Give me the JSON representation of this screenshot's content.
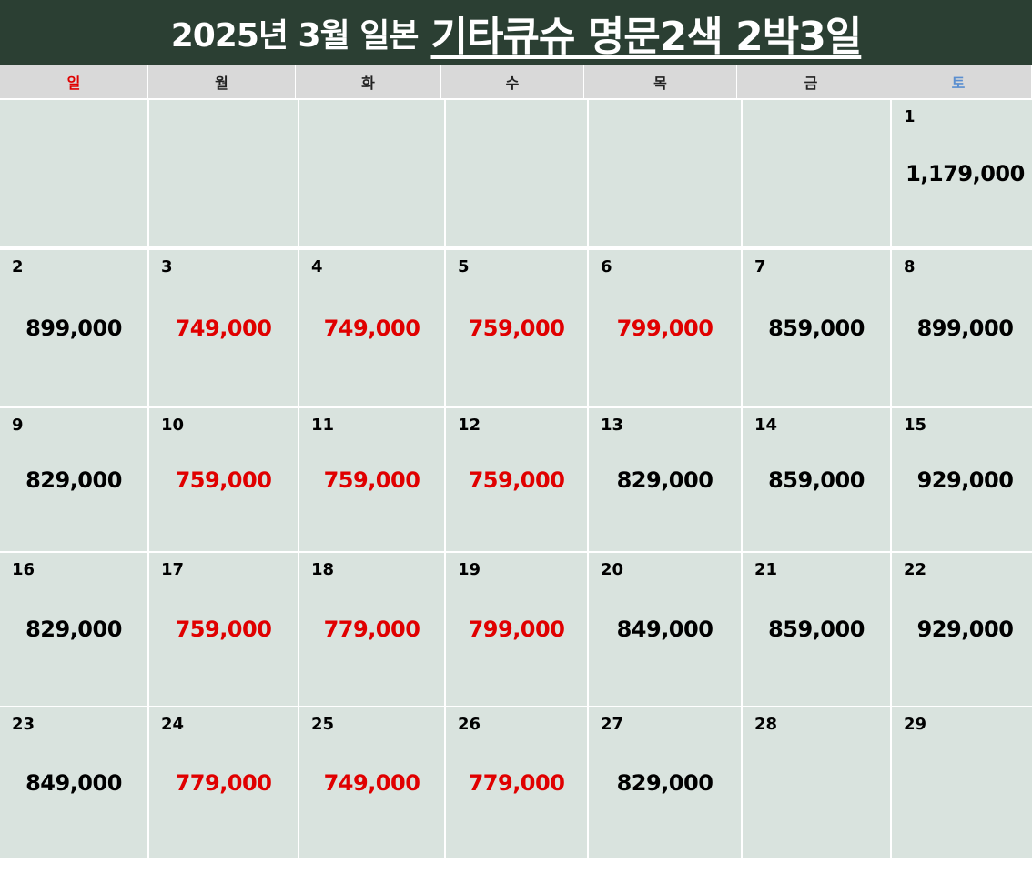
{
  "header": {
    "title_prefix": "2025년 3월 일본",
    "title_main": "기타큐슈 명문2색 2박3일"
  },
  "weekdays": [
    "일",
    "월",
    "화",
    "수",
    "목",
    "금",
    "토"
  ],
  "colors": {
    "header_bg": "#2b3f33",
    "cell_bg": "#d9e3de",
    "sale": "#e00000",
    "normal": "#000000",
    "sunday": "#e00000",
    "saturday": "#5b8fd0"
  },
  "weeks": [
    [
      null,
      null,
      null,
      null,
      null,
      null,
      {
        "day": "1",
        "price": "1,179,000",
        "sale": false
      }
    ],
    [
      {
        "day": "2",
        "price": "899,000",
        "sale": false
      },
      {
        "day": "3",
        "price": "749,000",
        "sale": true
      },
      {
        "day": "4",
        "price": "749,000",
        "sale": true
      },
      {
        "day": "5",
        "price": "759,000",
        "sale": true
      },
      {
        "day": "6",
        "price": "799,000",
        "sale": true
      },
      {
        "day": "7",
        "price": "859,000",
        "sale": false
      },
      {
        "day": "8",
        "price": "899,000",
        "sale": false
      }
    ],
    [
      {
        "day": "9",
        "price": "829,000",
        "sale": false
      },
      {
        "day": "10",
        "price": "759,000",
        "sale": true
      },
      {
        "day": "11",
        "price": "759,000",
        "sale": true
      },
      {
        "day": "12",
        "price": "759,000",
        "sale": true
      },
      {
        "day": "13",
        "price": "829,000",
        "sale": false
      },
      {
        "day": "14",
        "price": "859,000",
        "sale": false
      },
      {
        "day": "15",
        "price": "929,000",
        "sale": false
      }
    ],
    [
      {
        "day": "16",
        "price": "829,000",
        "sale": false
      },
      {
        "day": "17",
        "price": "759,000",
        "sale": true
      },
      {
        "day": "18",
        "price": "779,000",
        "sale": true
      },
      {
        "day": "19",
        "price": "799,000",
        "sale": true
      },
      {
        "day": "20",
        "price": "849,000",
        "sale": false
      },
      {
        "day": "21",
        "price": "859,000",
        "sale": false
      },
      {
        "day": "22",
        "price": "929,000",
        "sale": false
      }
    ],
    [
      {
        "day": "23",
        "price": "849,000",
        "sale": false
      },
      {
        "day": "24",
        "price": "779,000",
        "sale": true
      },
      {
        "day": "25",
        "price": "749,000",
        "sale": true
      },
      {
        "day": "26",
        "price": "779,000",
        "sale": true
      },
      {
        "day": "27",
        "price": "829,000",
        "sale": false
      },
      {
        "day": "28",
        "price": null,
        "sale": false
      },
      {
        "day": "29",
        "price": null,
        "sale": false
      }
    ]
  ]
}
